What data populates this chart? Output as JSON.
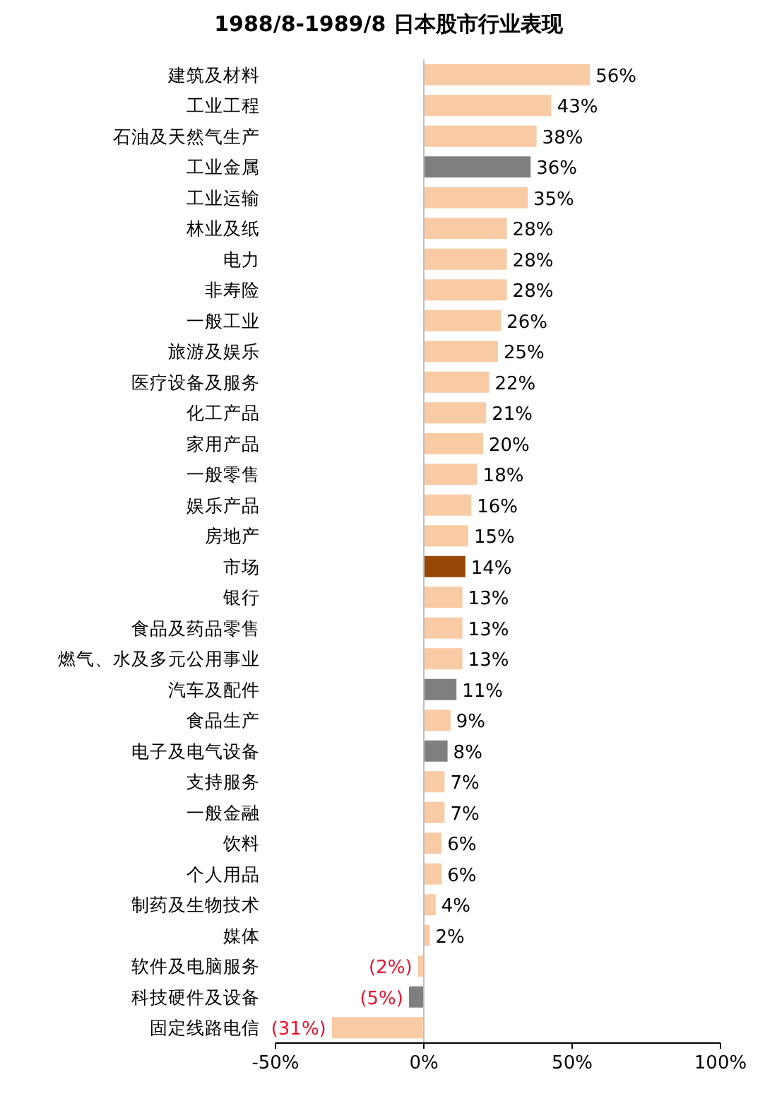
{
  "chart_data": {
    "type": "bar",
    "orientation": "horizontal",
    "title": "1988/8-1989/8 日本股市行业表现",
    "categories": [
      "建筑及材料",
      "工业工程",
      "石油及天然气生产",
      "工业金属",
      "工业运输",
      "林业及纸",
      "电力",
      "非寿险",
      "一般工业",
      "旅游及娱乐",
      "医疗设备及服务",
      "化工产品",
      "家用产品",
      "一般零售",
      "娱乐产品",
      "房地产",
      "市场",
      "银行",
      "食品及药品零售",
      "燃气、水及多元公用事业",
      "汽车及配件",
      "食品生产",
      "电子及电气设备",
      "支持服务",
      "一般金融",
      "饮料",
      "个人用品",
      "制药及生物技术",
      "媒体",
      "软件及电脑服务",
      "科技硬件及设备",
      "固定线路电信"
    ],
    "values": [
      56,
      43,
      38,
      36,
      35,
      28,
      28,
      28,
      26,
      25,
      22,
      21,
      20,
      18,
      16,
      15,
      14,
      13,
      13,
      13,
      11,
      9,
      8,
      7,
      7,
      6,
      6,
      4,
      2,
      -2,
      -5,
      -31
    ],
    "colors": [
      "#f9cba5",
      "#f9cba5",
      "#f9cba5",
      "#7f7f7f",
      "#f9cba5",
      "#f9cba5",
      "#f9cba5",
      "#f9cba5",
      "#f9cba5",
      "#f9cba5",
      "#f9cba5",
      "#f9cba5",
      "#f9cba5",
      "#f9cba5",
      "#f9cba5",
      "#f9cba5",
      "#974706",
      "#f9cba5",
      "#f9cba5",
      "#f9cba5",
      "#7f7f7f",
      "#f9cba5",
      "#7f7f7f",
      "#f9cba5",
      "#f9cba5",
      "#f9cba5",
      "#f9cba5",
      "#f9cba5",
      "#f9cba5",
      "#f9cba5",
      "#7f7f7f",
      "#f9cba5"
    ],
    "value_labels": [
      "56%",
      "43%",
      "38%",
      "36%",
      "35%",
      "28%",
      "28%",
      "28%",
      "26%",
      "25%",
      "22%",
      "21%",
      "20%",
      "18%",
      "16%",
      "15%",
      "14%",
      "13%",
      "13%",
      "13%",
      "11%",
      "9%",
      "8%",
      "7%",
      "7%",
      "6%",
      "6%",
      "4%",
      "2%",
      "(2%)",
      "(5%)",
      "(31%)"
    ],
    "xlim": [
      -50,
      100
    ],
    "xticks": [
      {
        "value": -50,
        "label": "-50%"
      },
      {
        "value": 0,
        "label": "0%"
      },
      {
        "value": 50,
        "label": "50%"
      },
      {
        "value": 100,
        "label": "100%"
      }
    ]
  }
}
